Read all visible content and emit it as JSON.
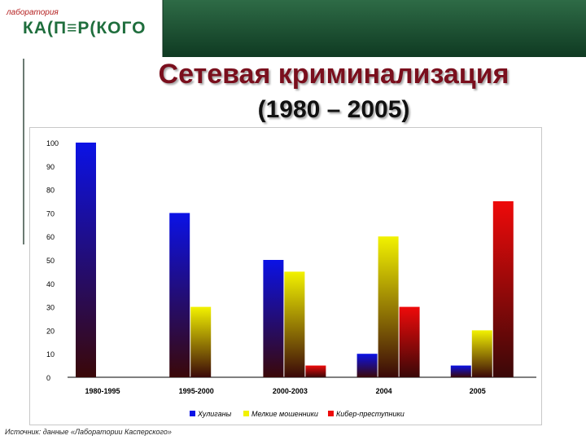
{
  "logo": {
    "small_text": "лаборатория",
    "main_text": "КА(П≡Р(КОГО"
  },
  "slide": {
    "title": "Сетевая криминализация",
    "subtitle": "(1980 – 2005)",
    "source": "Источник: данные «Лаборатории Касперского»",
    "accent_color": "#1f6e3d"
  },
  "chart_data": {
    "type": "bar",
    "categories": [
      "1980-1995",
      "1995-2000",
      "2000-2003",
      "2004",
      "2005"
    ],
    "series": [
      {
        "name": "Хулиганы",
        "color": "#0b12e6",
        "values": [
          100,
          70,
          50,
          10,
          5
        ]
      },
      {
        "name": "Мелкие мошенники",
        "color": "#f2f200",
        "values": [
          0,
          30,
          45,
          60,
          20
        ]
      },
      {
        "name": "Кибер-преступники",
        "color": "#ee0a0a",
        "values": [
          0,
          0,
          5,
          30,
          75
        ]
      }
    ],
    "yticks": [
      0,
      10,
      20,
      30,
      40,
      50,
      60,
      70,
      80,
      90,
      100
    ],
    "ylim": [
      0,
      100
    ],
    "legend_position": "bottom",
    "grid": false
  }
}
